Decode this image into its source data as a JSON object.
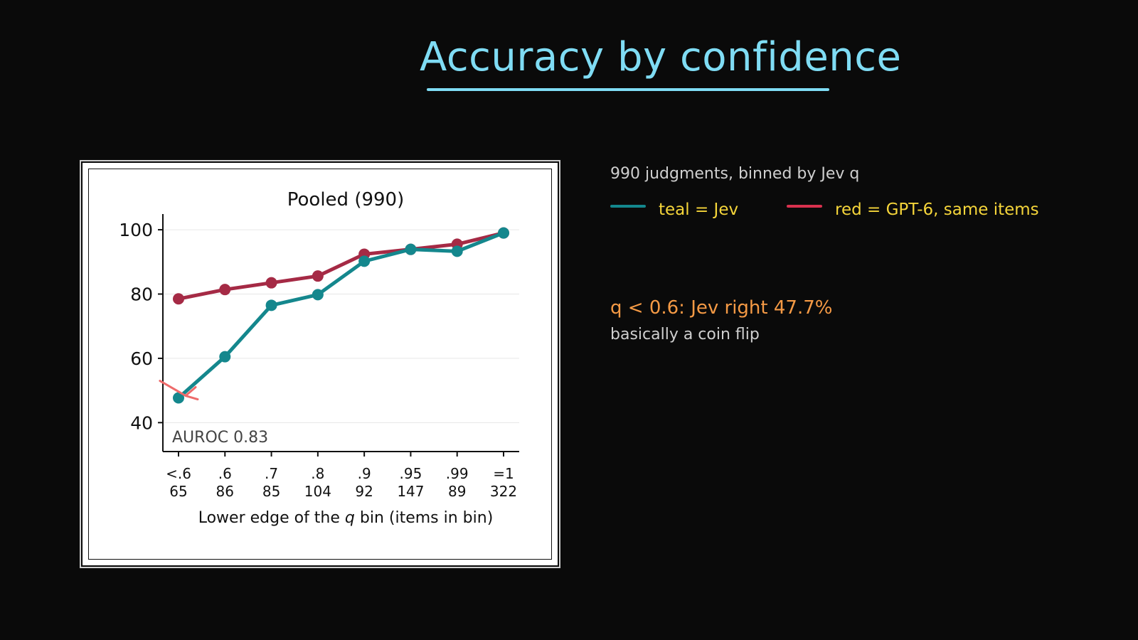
{
  "slide": {
    "title": "Accuracy by confidence",
    "title_color": "#7fdcf4",
    "background": "#0a0a0a"
  },
  "sidebar_text": {
    "summary": "990 judgments, binned by Jev q",
    "legend": [
      {
        "label": "teal = Jev",
        "color": "#14878d"
      },
      {
        "label": "red = GPT-6, same items",
        "color": "#d8314e"
      }
    ],
    "note_highlight": "q < 0.6: Jev right 47.7%",
    "note_highlight_color": "#f59a45",
    "note_sub": "basically a coin flip"
  },
  "chart_data": {
    "type": "line",
    "title": "Pooled (990)",
    "xlabel_prefix": "Lower edge of the ",
    "xlabel_var": "q",
    "xlabel_suffix": " bin (items in bin)",
    "ylabel": "",
    "categories": [
      "<.6",
      ".6",
      ".7",
      ".8",
      ".9",
      ".95",
      ".99",
      "=1"
    ],
    "category_counts": [
      "65",
      "86",
      "85",
      "104",
      "92",
      "147",
      "89",
      "322"
    ],
    "ylim": [
      31,
      104
    ],
    "yticks": [
      40,
      60,
      80,
      100
    ],
    "grid": true,
    "annotation": "AUROC 0.83",
    "series": [
      {
        "color": "#a52a45",
        "values": [
          78.5,
          81.4,
          83.5,
          85.6,
          92.4,
          93.9,
          95.5,
          99.0
        ]
      },
      {
        "color": "#14878d",
        "values": [
          47.7,
          60.5,
          76.5,
          79.8,
          90.2,
          93.9,
          93.3,
          99.0
        ]
      }
    ],
    "arrow_color": "#ee6b6b"
  }
}
